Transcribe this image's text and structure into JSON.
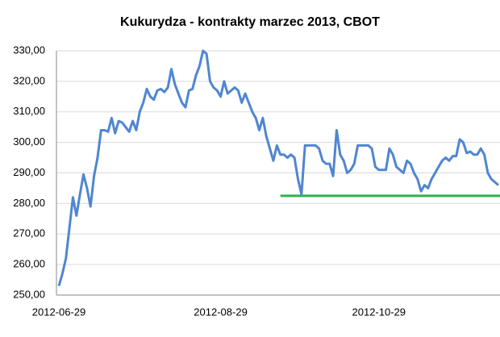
{
  "chart_data": {
    "type": "line",
    "title": "Kukurydza - kontrakty marzec 2013, CBOT",
    "categories": [
      "2012-06-29",
      null,
      null,
      null,
      null,
      null,
      null,
      null,
      null,
      null,
      null,
      null,
      null,
      null,
      null,
      null,
      null,
      null,
      null,
      null,
      null,
      null,
      null,
      null,
      null,
      null,
      null,
      null,
      null,
      null,
      null,
      null,
      null,
      null,
      null,
      null,
      null,
      null,
      null,
      null,
      null,
      null,
      null,
      null,
      null,
      null,
      "2012-08-29",
      null,
      null,
      null,
      null,
      null,
      null,
      null,
      null,
      null,
      null,
      null,
      null,
      null,
      null,
      null,
      null,
      null,
      null,
      null,
      null,
      null,
      null,
      null,
      null,
      null,
      null,
      null,
      null,
      null,
      null,
      null,
      null,
      null,
      null,
      null,
      null,
      null,
      null,
      null,
      null,
      null,
      null,
      null,
      null,
      "2012-10-29",
      null,
      null,
      null,
      null,
      null,
      null,
      null,
      null,
      null,
      null,
      null,
      null,
      null,
      null,
      null,
      null,
      null,
      null,
      null,
      null,
      null,
      null,
      null,
      null,
      null,
      null,
      null,
      null,
      null,
      null,
      null,
      null,
      null,
      null
    ],
    "series": [
      {
        "color": "#4f86d1",
        "values": [
          253,
          257,
          262,
          272,
          282,
          276,
          283,
          289.5,
          285,
          279,
          289,
          295,
          304,
          304,
          303.5,
          308,
          303,
          307,
          306.5,
          305,
          303.5,
          307,
          304,
          310,
          313,
          317.5,
          315,
          314,
          317,
          317.5,
          316.5,
          318,
          324,
          319,
          316,
          313,
          311.5,
          317,
          317.5,
          322,
          325,
          330,
          329,
          320,
          318,
          317,
          315,
          320,
          316,
          317,
          318,
          317,
          313,
          316,
          313,
          310,
          308,
          304,
          308,
          302,
          298,
          294,
          299,
          296,
          296,
          295,
          296,
          295,
          288,
          283,
          299,
          299,
          299,
          299,
          298,
          294,
          293,
          293,
          289,
          304,
          296,
          294,
          290,
          291,
          293,
          299,
          299,
          299,
          299,
          298,
          292,
          291,
          291,
          291,
          298,
          296,
          292,
          291,
          290,
          294,
          293,
          290,
          288,
          284,
          286,
          285,
          288,
          290,
          292,
          294,
          295,
          294,
          295.5,
          295.5,
          301,
          300,
          296.5,
          297,
          296,
          296,
          298,
          296,
          290,
          288,
          287,
          286
        ]
      }
    ],
    "hline": {
      "y": 282.5,
      "from_index": 63,
      "color": "#2db34a"
    },
    "ylim": [
      250,
      330
    ],
    "yticks": [
      {
        "value": 250,
        "label": "250,00"
      },
      {
        "value": 260,
        "label": "260,00"
      },
      {
        "value": 270,
        "label": "270,00"
      },
      {
        "value": 280,
        "label": "280,00"
      },
      {
        "value": 290,
        "label": "290,00"
      },
      {
        "value": 300,
        "label": "300,00"
      },
      {
        "value": 310,
        "label": "310,00"
      },
      {
        "value": 320,
        "label": "320,00"
      },
      {
        "value": 330,
        "label": "330,00"
      }
    ],
    "grid": true
  }
}
